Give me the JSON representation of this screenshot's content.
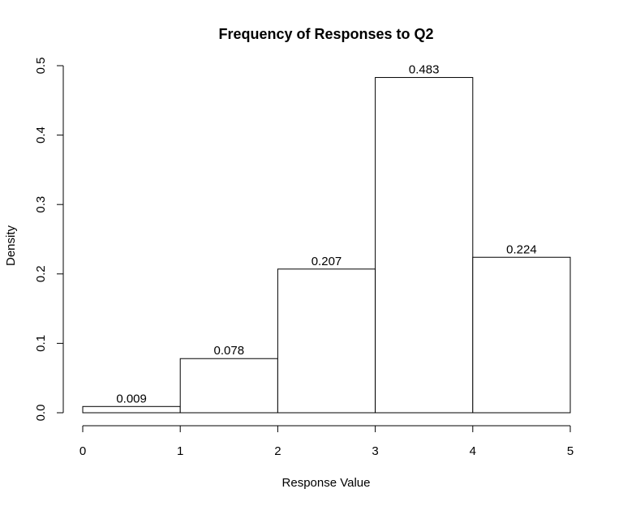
{
  "chart_data": {
    "type": "bar",
    "title": "Frequency of Responses to Q2",
    "xlabel": "Response Value",
    "ylabel": "Density",
    "bins": [
      {
        "start": 0,
        "end": 1,
        "value": 0.009,
        "label": "0.009"
      },
      {
        "start": 1,
        "end": 2,
        "value": 0.078,
        "label": "0.078"
      },
      {
        "start": 2,
        "end": 3,
        "value": 0.207,
        "label": "0.207"
      },
      {
        "start": 3,
        "end": 4,
        "value": 0.483,
        "label": "0.483"
      },
      {
        "start": 4,
        "end": 5,
        "value": 0.224,
        "label": "0.224"
      }
    ],
    "xticks": [
      "0",
      "1",
      "2",
      "3",
      "4",
      "5"
    ],
    "yticks": [
      "0.0",
      "0.1",
      "0.2",
      "0.3",
      "0.4",
      "0.5"
    ],
    "xlim": [
      0,
      5
    ],
    "ylim": [
      0,
      0.5
    ],
    "grid": false,
    "legend": "none"
  }
}
